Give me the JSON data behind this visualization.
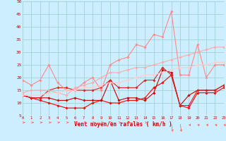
{
  "x": [
    0,
    1,
    2,
    3,
    4,
    5,
    6,
    7,
    8,
    9,
    10,
    11,
    12,
    13,
    14,
    15,
    16,
    17,
    18,
    19,
    20,
    21,
    22,
    23
  ],
  "series": [
    {
      "color": "#ff0000",
      "linewidth": 0.8,
      "marker": "D",
      "markersize": 1.8,
      "y": [
        13,
        12,
        11,
        10,
        9,
        8,
        8,
        8,
        10,
        11,
        10,
        10,
        11,
        11,
        12,
        16,
        18,
        21,
        9,
        8,
        14,
        14,
        14,
        16
      ]
    },
    {
      "color": "#cc0000",
      "linewidth": 0.8,
      "marker": "D",
      "markersize": 1.8,
      "y": [
        13,
        12,
        12,
        12,
        11,
        11,
        12,
        11,
        11,
        11,
        19,
        11,
        12,
        12,
        11,
        14,
        23,
        22,
        9,
        13,
        15,
        15,
        15,
        17
      ]
    },
    {
      "color": "#dd2222",
      "linewidth": 0.8,
      "marker": "D",
      "markersize": 1.8,
      "y": [
        13,
        12,
        12,
        15,
        16,
        16,
        15,
        15,
        15,
        16,
        19,
        16,
        16,
        16,
        19,
        19,
        24,
        21,
        9,
        9,
        15,
        15,
        15,
        17
      ]
    },
    {
      "color": "#ff8888",
      "linewidth": 0.8,
      "marker": "D",
      "markersize": 1.8,
      "y": [
        19,
        17,
        19,
        25,
        18,
        15,
        15,
        18,
        20,
        15,
        25,
        27,
        28,
        33,
        32,
        37,
        36,
        46,
        21,
        21,
        33,
        20,
        25,
        25
      ]
    },
    {
      "color": "#ffaaaa",
      "linewidth": 0.8,
      "marker": "D",
      "markersize": 1.8,
      "y": [
        14,
        15,
        15,
        15,
        14,
        13,
        16,
        17,
        18,
        20,
        22,
        22,
        23,
        24,
        24,
        25,
        26,
        27,
        28,
        29,
        30,
        31,
        32,
        32
      ]
    },
    {
      "color": "#ffcccc",
      "linewidth": 0.8,
      "marker": "D",
      "markersize": 1.8,
      "y": [
        13,
        13,
        13,
        14,
        14,
        15,
        15,
        16,
        16,
        17,
        18,
        18,
        19,
        20,
        21,
        21,
        22,
        23,
        24,
        24,
        25,
        25,
        26,
        26
      ]
    }
  ],
  "xlabel": "Vent moyen/en rafales ( km/h )",
  "ylim": [
    5,
    50
  ],
  "xlim": [
    0,
    23
  ],
  "yticks": [
    5,
    10,
    15,
    20,
    25,
    30,
    35,
    40,
    45,
    50
  ],
  "xticks": [
    0,
    1,
    2,
    3,
    4,
    5,
    6,
    7,
    8,
    9,
    10,
    11,
    12,
    13,
    14,
    15,
    16,
    17,
    18,
    19,
    20,
    21,
    22,
    23
  ],
  "background_color": "#cceeff",
  "grid_color": "#99cccc",
  "arrow_color": "#ff6666"
}
